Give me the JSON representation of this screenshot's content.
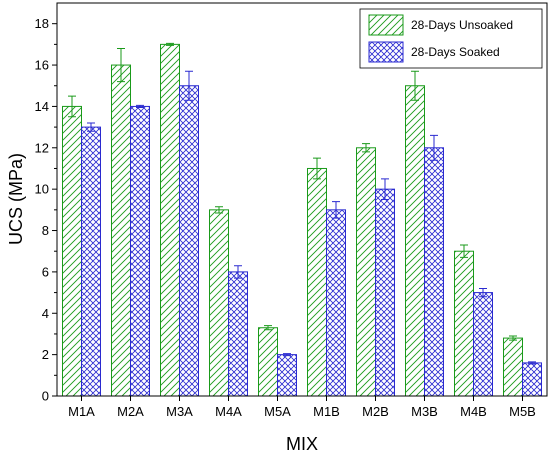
{
  "chart_data": {
    "type": "bar",
    "title": "",
    "xlabel": "MIX",
    "ylabel": "UCS (MPa)",
    "ylim": [
      0,
      19
    ],
    "yticks": [
      0,
      2,
      4,
      6,
      8,
      10,
      12,
      14,
      16,
      18
    ],
    "grid": false,
    "legend_position": "top-right",
    "categories": [
      "M1A",
      "M2A",
      "M3A",
      "M4A",
      "M5A",
      "M1B",
      "M2B",
      "M3B",
      "M4B",
      "M5B"
    ],
    "series": [
      {
        "name": "28-Days Unsoaked",
        "color": "#1a9a1a",
        "pattern": "diagonal-hatch",
        "values": [
          14.0,
          16.0,
          17.0,
          9.0,
          3.3,
          11.0,
          12.0,
          15.0,
          7.0,
          2.8
        ],
        "errors": [
          0.5,
          0.8,
          0.05,
          0.15,
          0.1,
          0.5,
          0.2,
          0.7,
          0.3,
          0.1
        ]
      },
      {
        "name": "28-Days Soaked",
        "color": "#2a2ad0",
        "pattern": "crosshatch",
        "values": [
          13.0,
          14.0,
          15.0,
          6.0,
          2.0,
          9.0,
          10.0,
          12.0,
          5.0,
          1.6
        ],
        "errors": [
          0.2,
          0.05,
          0.7,
          0.3,
          0.05,
          0.4,
          0.5,
          0.6,
          0.2,
          0.05
        ]
      }
    ]
  }
}
